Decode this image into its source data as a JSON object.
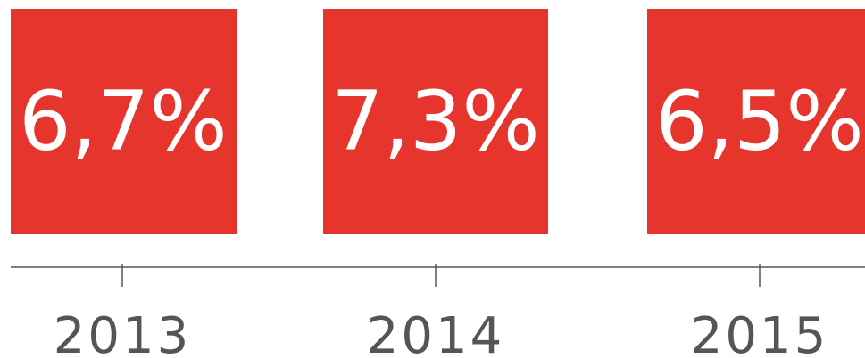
{
  "items": [
    {
      "label": "6,7%",
      "year": "2013"
    },
    {
      "label": "7,3%",
      "year": "2014"
    },
    {
      "label": "6,5%",
      "year": "2015"
    }
  ]
}
